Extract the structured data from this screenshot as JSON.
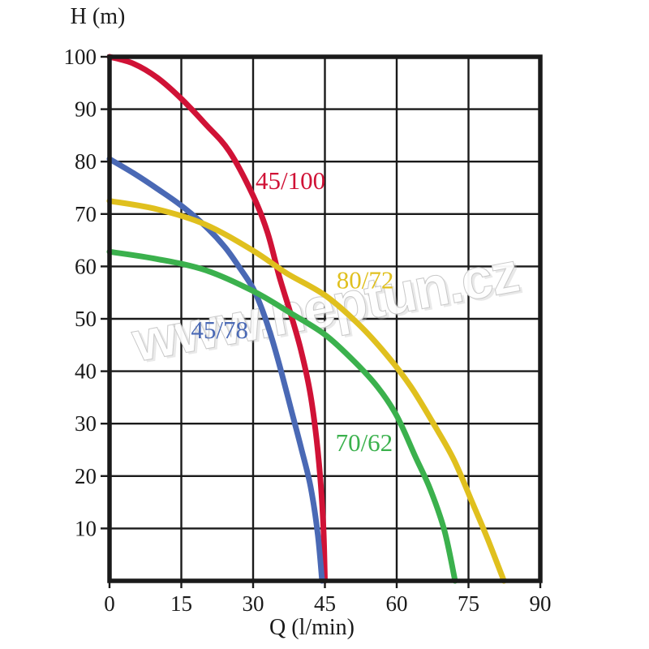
{
  "chart_data": {
    "type": "line",
    "title": "",
    "xlabel": "Q (l/min)",
    "ylabel": "H (m)",
    "xlim": [
      0,
      90
    ],
    "ylim": [
      0,
      100
    ],
    "xticks": [
      0,
      15,
      30,
      45,
      60,
      75,
      90
    ],
    "yticks": [
      10,
      20,
      30,
      40,
      50,
      60,
      70,
      80,
      90,
      100
    ],
    "grid": "on",
    "legend": "inline-curve-labels",
    "axis_color": "#1a1a1a",
    "background": "#ffffff",
    "series": [
      {
        "name": "45/100",
        "color": "#d01236",
        "label": {
          "text": "45/100",
          "q": 37.8,
          "h": 76.5
        },
        "points": [
          [
            0,
            100
          ],
          [
            5,
            98.7
          ],
          [
            10,
            96
          ],
          [
            15,
            92
          ],
          [
            20,
            87.2
          ],
          [
            25,
            82
          ],
          [
            30,
            73.5
          ],
          [
            33,
            66.5
          ],
          [
            35.5,
            58
          ],
          [
            38,
            50.5
          ],
          [
            40,
            44
          ],
          [
            41.8,
            36.5
          ],
          [
            43,
            29
          ],
          [
            44,
            20
          ],
          [
            44.7,
            10
          ],
          [
            45,
            0
          ]
        ]
      },
      {
        "name": "45/78",
        "color": "#4a69b5",
        "label": {
          "text": "45/78",
          "q": 23,
          "h": 48
        },
        "points": [
          [
            0,
            80.5
          ],
          [
            5,
            77.8
          ],
          [
            10,
            74.8
          ],
          [
            15,
            71.6
          ],
          [
            20,
            67.7
          ],
          [
            24,
            63.8
          ],
          [
            27,
            60
          ],
          [
            30,
            55.8
          ],
          [
            32,
            51.5
          ],
          [
            34,
            46
          ],
          [
            36,
            39.5
          ],
          [
            38,
            32.5
          ],
          [
            40,
            25.5
          ],
          [
            42,
            18
          ],
          [
            43.5,
            9
          ],
          [
            44.4,
            0
          ]
        ]
      },
      {
        "name": "70/62",
        "color": "#3bb14d",
        "label": {
          "text": "70/62",
          "q": 53.2,
          "h": 26.5
        },
        "points": [
          [
            0,
            62.8
          ],
          [
            10,
            61.4
          ],
          [
            20,
            59.3
          ],
          [
            30,
            55.3
          ],
          [
            38,
            51
          ],
          [
            45,
            47
          ],
          [
            51,
            42
          ],
          [
            56,
            37
          ],
          [
            60,
            31.5
          ],
          [
            64,
            23.5
          ],
          [
            67,
            17.5
          ],
          [
            70,
            9.5
          ],
          [
            72.2,
            0
          ]
        ]
      },
      {
        "name": "80/72",
        "color": "#e0c01e",
        "label": {
          "text": "80/72",
          "q": 53.4,
          "h": 57.5
        },
        "points": [
          [
            0,
            72.5
          ],
          [
            10,
            70.9
          ],
          [
            20,
            68
          ],
          [
            30,
            63
          ],
          [
            37,
            58.7
          ],
          [
            45,
            54.5
          ],
          [
            52,
            49
          ],
          [
            58,
            43
          ],
          [
            63,
            37
          ],
          [
            68,
            29.5
          ],
          [
            72,
            23
          ],
          [
            76,
            14.5
          ],
          [
            79,
            8
          ],
          [
            82.4,
            0
          ]
        ]
      }
    ],
    "watermark": {
      "text": "www.neptun.cz",
      "color": "#ffffff",
      "angle_deg": -10.5
    }
  }
}
